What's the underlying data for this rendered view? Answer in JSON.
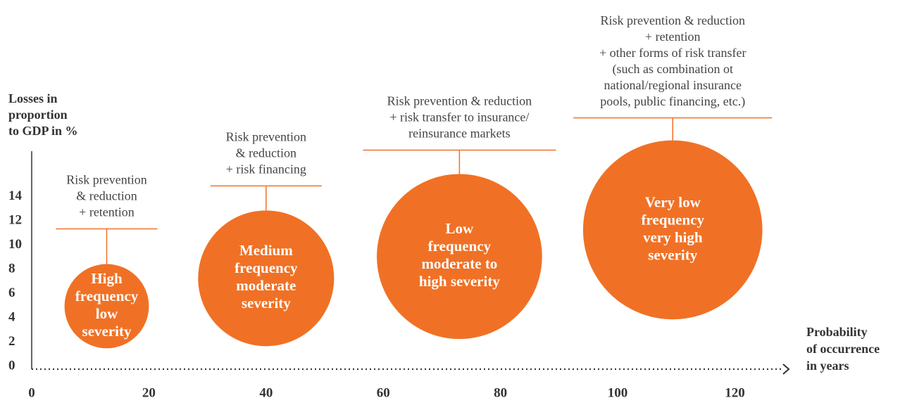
{
  "chart_data": {
    "type": "bubble",
    "y_label": [
      "Losses in",
      "proportion",
      "to GDP in %"
    ],
    "x_label": [
      "Probability",
      "of occurrence",
      "in years"
    ],
    "xlim": [
      0,
      128
    ],
    "xticks": [
      0,
      20,
      40,
      60,
      80,
      100,
      120
    ],
    "ylim": [
      0,
      18
    ],
    "yticks": [
      0,
      2,
      4,
      6,
      8,
      10,
      12,
      14
    ],
    "color": "#f07125",
    "points": [
      {
        "label": [
          "High",
          "frequency",
          "low",
          "severity"
        ],
        "strategy": [
          "Risk prevention",
          "& reduction",
          "+ retention"
        ],
        "x": 12.8,
        "y": 5.2,
        "size": 7.2
      },
      {
        "label": [
          "Medium",
          "frequency",
          "moderate",
          "severity"
        ],
        "strategy": [
          "Risk prevention",
          "& reduction",
          "+ risk financing"
        ],
        "x": 40,
        "y": 7.5,
        "size": 11.6
      },
      {
        "label": [
          "Low",
          "frequency",
          "moderate to",
          "high severity"
        ],
        "strategy": [
          "Risk prevention & reduction",
          "+ risk transfer to insurance/",
          "reinsurance markets"
        ],
        "x": 73,
        "y": 9.3,
        "size": 14.1
      },
      {
        "label": [
          "Very low",
          "frequency",
          "very high",
          "severity"
        ],
        "strategy": [
          "Risk prevention & reduction",
          "+ retention",
          "+ other forms of risk transfer",
          "(such as combination ot",
          "national/regional insurance",
          "pools, public financing, etc.)"
        ],
        "x": 109.4,
        "y": 11.5,
        "size": 15.3
      }
    ]
  }
}
